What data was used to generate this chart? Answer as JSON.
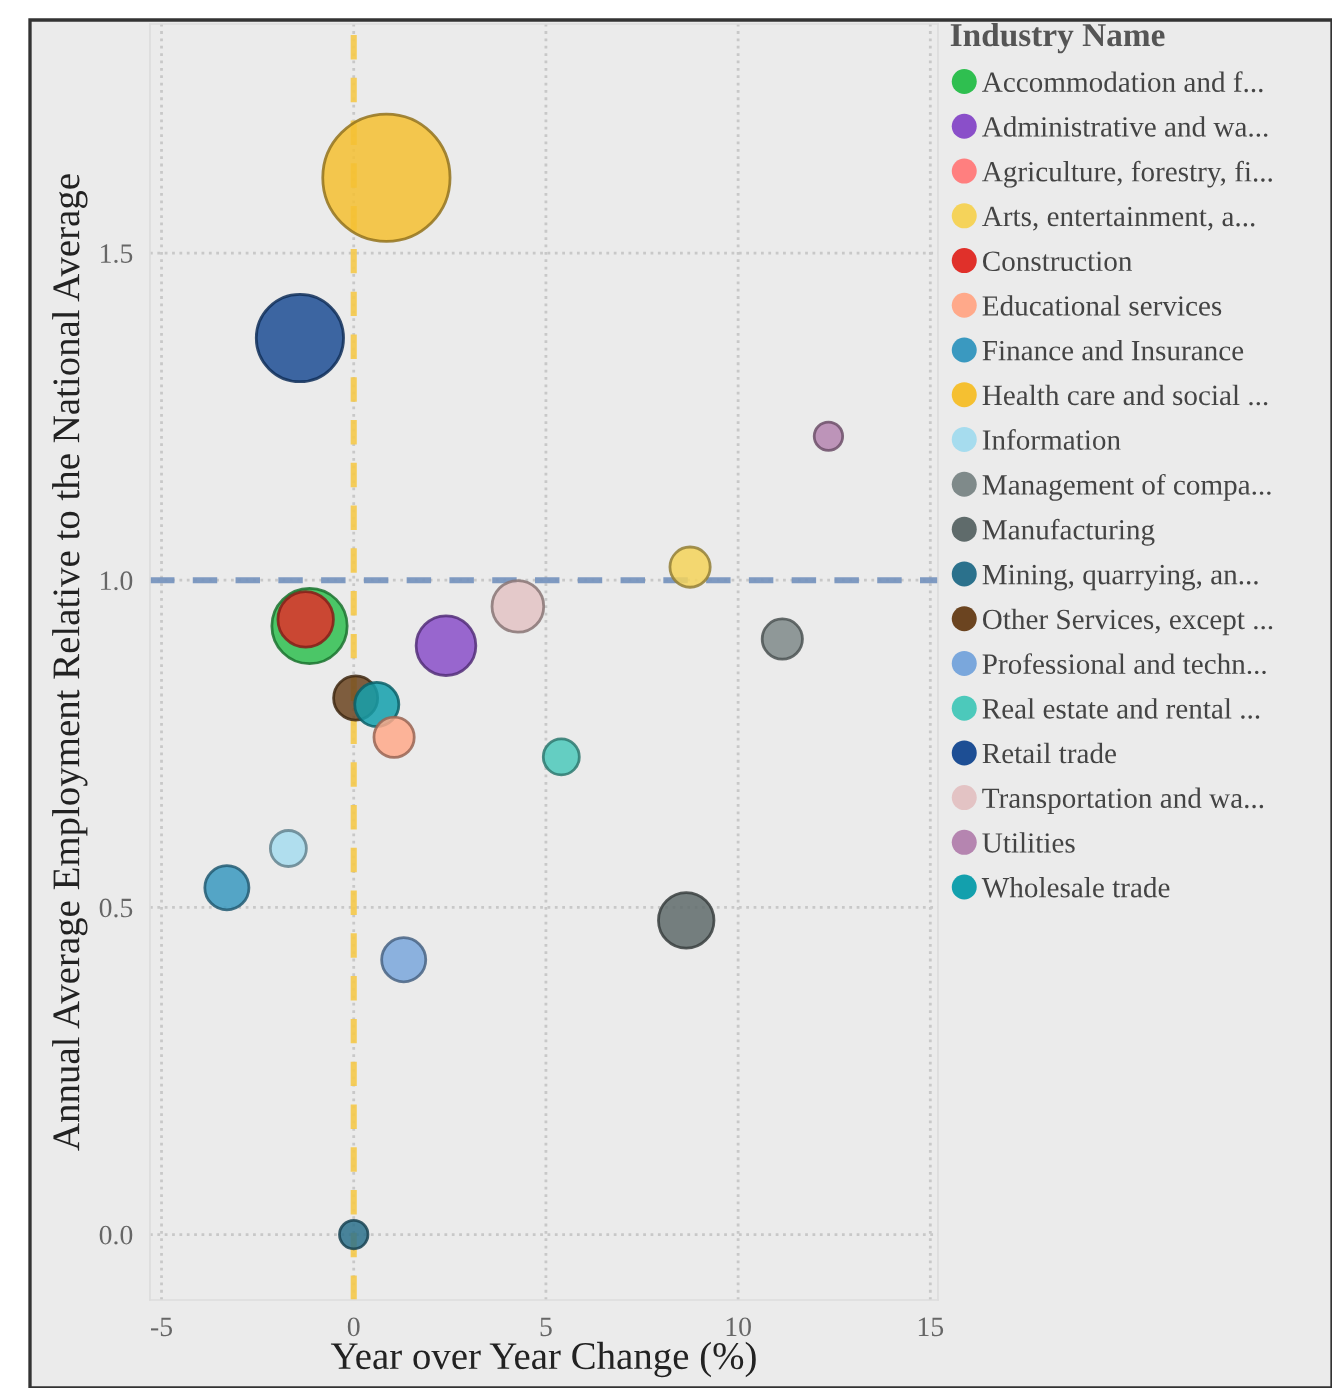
{
  "chart_data": {
    "type": "bubble",
    "xlabel": "Year over Year Change (%)",
    "ylabel": "Annual Average Employment Relative to the National Average",
    "legend_title": "Industry Name",
    "legend": "right",
    "grid": true,
    "xlim": [
      -5.3,
      15.2
    ],
    "xticks": [
      -5,
      0,
      5,
      10,
      15
    ],
    "ylim": [
      -0.1,
      1.85
    ],
    "yticks": [
      {
        "value": 0,
        "label": "0.0"
      },
      0.5,
      {
        "value": 1,
        "label": "1.0"
      },
      1.5
    ],
    "ref_lines": [
      {
        "axis": "x",
        "value": 0,
        "color": "#f5c94a",
        "line_style": "dashed"
      },
      {
        "axis": "y",
        "value": 1,
        "color": "#7391bd",
        "line_style": "dashed"
      }
    ],
    "series": [
      {
        "name": "Accommodation and f...",
        "color": "#2fbf50",
        "x": [
          -1.15
        ],
        "values": [
          0.93
        ],
        "sizes": [
          0.35
        ]
      },
      {
        "name": "Administrative and wa...",
        "color": "#8a4fc9",
        "x": [
          2.4
        ],
        "values": [
          0.9
        ],
        "sizes": [
          0.22
        ]
      },
      {
        "name": "Agriculture, forestry, fi...",
        "color": "#ff7f7f"
      },
      {
        "name": "Arts, entertainment, a...",
        "color": "#f5d35a",
        "x": [
          8.75
        ],
        "values": [
          1.02
        ],
        "sizes": [
          0.1
        ]
      },
      {
        "name": "Construction",
        "color": "#e0302a",
        "x": [
          -1.25
        ],
        "values": [
          0.94
        ],
        "sizes": [
          0.19
        ]
      },
      {
        "name": "Educational services",
        "color": "#ffa98a",
        "x": [
          1.05
        ],
        "values": [
          0.76
        ],
        "sizes": [
          0.1
        ]
      },
      {
        "name": "Finance and Insurance",
        "color": "#3a99c0",
        "x": [
          -3.3
        ],
        "values": [
          0.53
        ],
        "sizes": [
          0.12
        ]
      },
      {
        "name": "Health care and social ...",
        "color": "#f5c031",
        "x": [
          0.85
        ],
        "values": [
          1.615
        ],
        "sizes": [
          1
        ]
      },
      {
        "name": "Information",
        "color": "#a6dcee",
        "x": [
          -1.7
        ],
        "values": [
          0.59
        ],
        "sizes": [
          0.08
        ]
      },
      {
        "name": "Management of compa...",
        "color": "#7f8a8a",
        "x": [
          11.15
        ],
        "values": [
          0.91
        ],
        "sizes": [
          0.1
        ]
      },
      {
        "name": "Manufacturing",
        "color": "#5f6b6b",
        "x": [
          8.65
        ],
        "values": [
          0.48
        ],
        "sizes": [
          0.19
        ]
      },
      {
        "name": "Mining, quarrying, an...",
        "color": "#2b718c",
        "x": [
          0
        ],
        "values": [
          0
        ],
        "sizes": [
          0.05
        ]
      },
      {
        "name": "Other Services, except ...",
        "color": "#6b4420",
        "x": [
          0.05
        ],
        "values": [
          0.82
        ],
        "sizes": [
          0.12
        ]
      },
      {
        "name": "Professional and techn...",
        "color": "#7aa7dc",
        "x": [
          1.3
        ],
        "values": [
          0.42
        ],
        "sizes": [
          0.12
        ]
      },
      {
        "name": "Real estate and rental ...",
        "color": "#4cc9bb",
        "x": [
          5.4
        ],
        "values": [
          0.73
        ],
        "sizes": [
          0.08
        ]
      },
      {
        "name": "Retail trade",
        "color": "#1d4e94",
        "x": [
          -1.4
        ],
        "values": [
          1.37
        ],
        "sizes": [
          0.47
        ]
      },
      {
        "name": "Transportation and wa...",
        "color": "#e3c3c4",
        "x": [
          4.27
        ],
        "values": [
          0.96
        ],
        "sizes": [
          0.165
        ]
      },
      {
        "name": "Utilities",
        "color": "#b585b0",
        "x": [
          12.35
        ],
        "values": [
          1.22
        ],
        "sizes": [
          0.05
        ]
      },
      {
        "name": "Wholesale trade",
        "color": "#13a0ad",
        "x": [
          0.6
        ],
        "values": [
          0.81
        ],
        "sizes": [
          0.12
        ]
      }
    ]
  }
}
